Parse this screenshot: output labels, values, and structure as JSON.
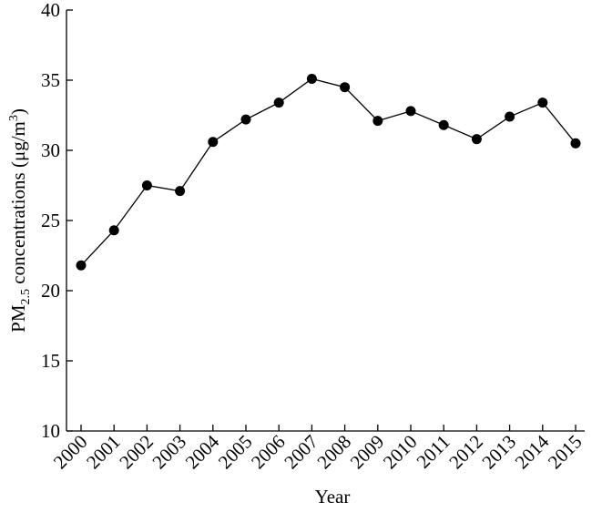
{
  "chart_data": {
    "type": "line",
    "x_label": "Year",
    "y_label": [
      "PM",
      "2.5",
      " concentrations (μg/m",
      "3",
      ")"
    ],
    "categories": [
      "2000",
      "2001",
      "2002",
      "2003",
      "2004",
      "2005",
      "2006",
      "2007",
      "2008",
      "2009",
      "2010",
      "2011",
      "2012",
      "2013",
      "2014",
      "2015"
    ],
    "series": [
      {
        "color": "#000000",
        "values": [
          21.8,
          24.3,
          27.5,
          27.1,
          30.6,
          32.2,
          33.4,
          35.1,
          34.5,
          32.1,
          32.8,
          31.8,
          30.8,
          32.4,
          33.4,
          30.5
        ]
      }
    ],
    "ylim": [
      10,
      40
    ],
    "yticks": [
      10,
      15,
      20,
      25,
      30,
      35,
      40
    ],
    "grid": false
  }
}
